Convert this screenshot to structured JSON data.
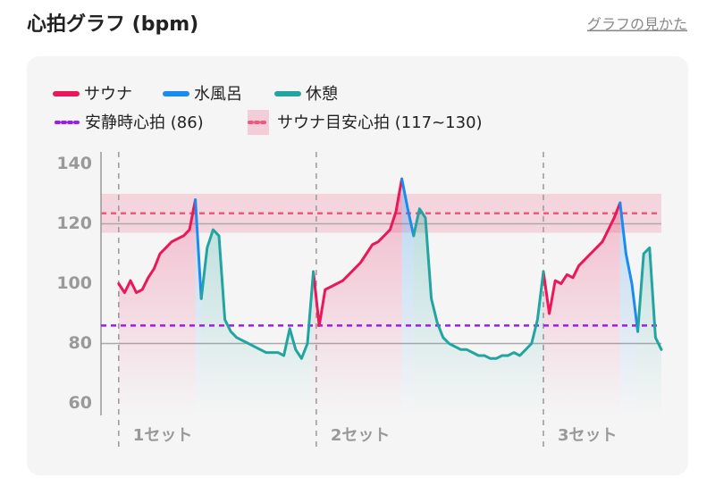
{
  "header": {
    "title": "心拍グラフ (bpm)",
    "link": "グラフの見かた"
  },
  "chart_data": {
    "type": "line",
    "series": [
      {
        "name": "サウナ",
        "color": "#e8185a",
        "x": [
          0,
          2,
          4,
          6,
          8,
          10,
          12,
          14,
          16,
          18,
          20,
          22,
          24,
          26,
          null,
          66,
          68,
          70,
          72,
          74,
          76,
          78,
          80,
          82,
          84,
          86,
          88,
          90,
          92,
          94,
          96,
          null,
          144,
          146,
          148,
          150,
          152,
          154,
          156,
          158,
          160,
          162,
          164,
          166,
          168,
          170
        ],
        "values": [
          100,
          97,
          101,
          97,
          98,
          102,
          105,
          110,
          112,
          114,
          115,
          116,
          118,
          128,
          null,
          104,
          86,
          98,
          99,
          100,
          101,
          103,
          105,
          107,
          110,
          113,
          114,
          116,
          118,
          124,
          135,
          null,
          104,
          90,
          101,
          100,
          103,
          102,
          106,
          108,
          110,
          112,
          114,
          118,
          122,
          127
        ]
      },
      {
        "name": "水風呂",
        "color": "#1a8cf0",
        "x": [
          26,
          28,
          null,
          96,
          98,
          100,
          null,
          170,
          172,
          174,
          176
        ],
        "values": [
          128,
          95,
          null,
          135,
          125,
          116,
          null,
          127,
          110,
          100,
          84
        ]
      },
      {
        "name": "休憩",
        "color": "#22a5a0",
        "x": [
          28,
          30,
          32,
          34,
          36,
          38,
          40,
          42,
          44,
          46,
          48,
          50,
          52,
          54,
          56,
          58,
          60,
          62,
          64,
          66,
          null,
          100,
          102,
          104,
          106,
          108,
          110,
          112,
          114,
          116,
          118,
          120,
          122,
          124,
          126,
          128,
          130,
          132,
          134,
          136,
          138,
          140,
          142,
          144,
          null,
          176,
          178,
          180,
          182,
          184
        ],
        "values": [
          95,
          112,
          118,
          116,
          88,
          84,
          82,
          81,
          80,
          79,
          78,
          77,
          77,
          77,
          76,
          85,
          78,
          75,
          80,
          104,
          null,
          116,
          125,
          122,
          95,
          87,
          82,
          80,
          79,
          78,
          78,
          77,
          76,
          76,
          75,
          75,
          76,
          76,
          77,
          76,
          78,
          80,
          88,
          104,
          null,
          84,
          110,
          112,
          82,
          78
        ]
      }
    ],
    "resting": {
      "label": "安静時心拍 (86)",
      "value": 86,
      "color": "#9b1cf2"
    },
    "target_zone": {
      "label": "サウナ目安心拍 (117~130)",
      "low": 117,
      "high": 130,
      "color": "#f0567e"
    },
    "sets": [
      {
        "label": "1セット",
        "x": 0
      },
      {
        "label": "2セット",
        "x": 67
      },
      {
        "label": "3セット",
        "x": 144
      }
    ],
    "xlim": [
      -6,
      184
    ],
    "ylim": [
      56,
      144
    ],
    "yticks": [
      60,
      80,
      100,
      120,
      140
    ],
    "gridlines": [
      80,
      120
    ]
  }
}
